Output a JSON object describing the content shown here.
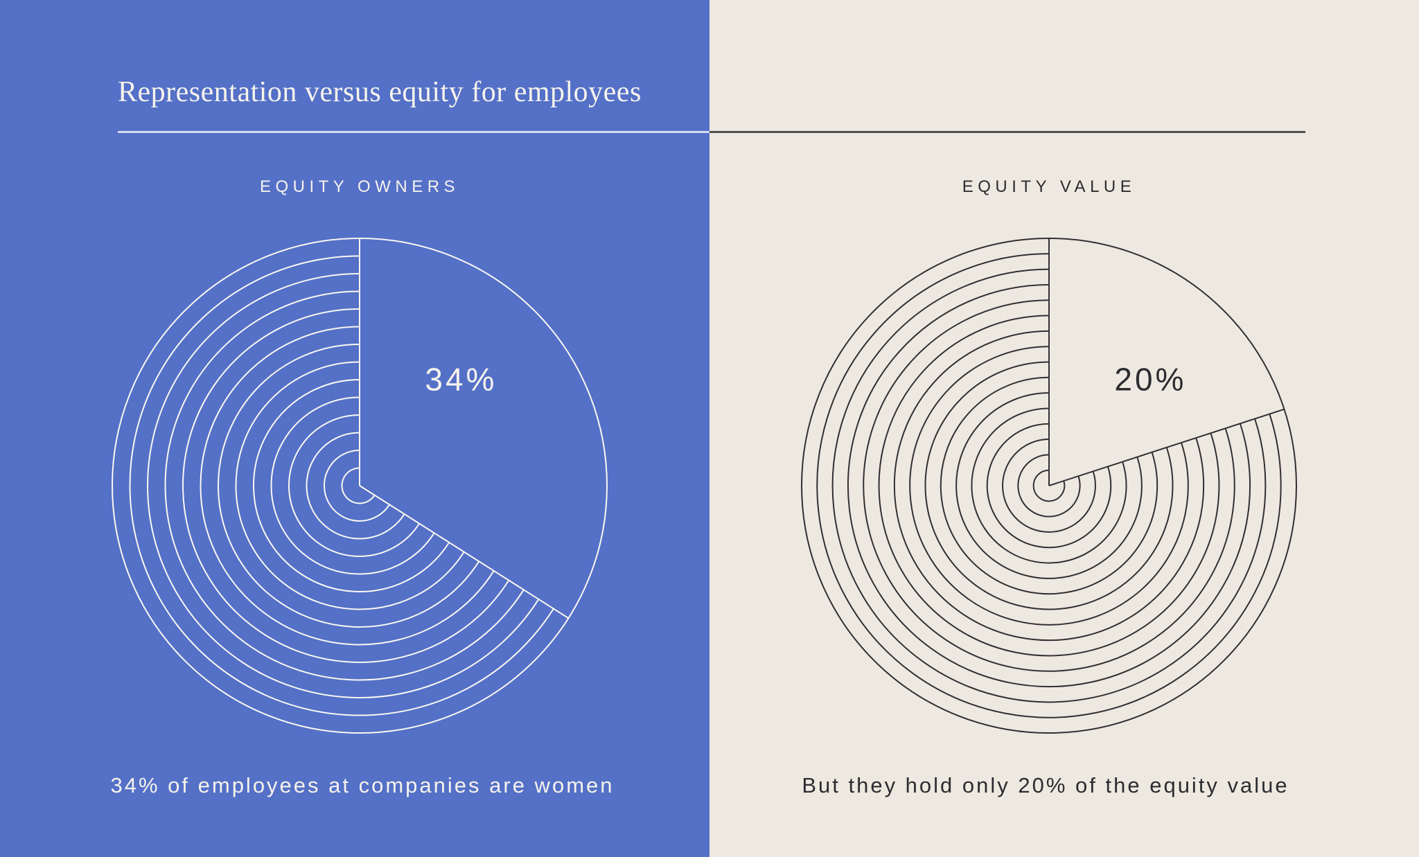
{
  "header": {
    "title": "Representation versus equity for employees"
  },
  "colors": {
    "left_panel_bg": "#5470C7",
    "right_panel_bg": "#EEE9E0",
    "light_ink": "#F6F3EC",
    "dark_ink": "#2B2B30",
    "rule_light": "#D5DCF2",
    "rule_dark": "#4D4D4B"
  },
  "chart_data": [
    {
      "type": "pie",
      "section_label": "EQUITY OWNERS",
      "slice_pct": 34,
      "slice_label": "34%",
      "caption": "34% of employees at companies are women",
      "rings": 13,
      "style": {
        "stroke": "#FAF8F2",
        "ink": "#F6F3EC",
        "bg": "#5470C7"
      },
      "layout_hint": "slice from 12 o'clock clockwise; remainder drawn as concentric rings"
    },
    {
      "type": "pie",
      "section_label": "EQUITY VALUE",
      "slice_pct": 20,
      "slice_label": "20%",
      "caption": "But they hold only 20% of the equity value",
      "rings": 15,
      "style": {
        "stroke": "#2F2F33",
        "ink": "#2B2B30",
        "bg": "#EEE9E0"
      },
      "layout_hint": "slice from 12 o'clock clockwise; remainder drawn as concentric rings"
    }
  ]
}
